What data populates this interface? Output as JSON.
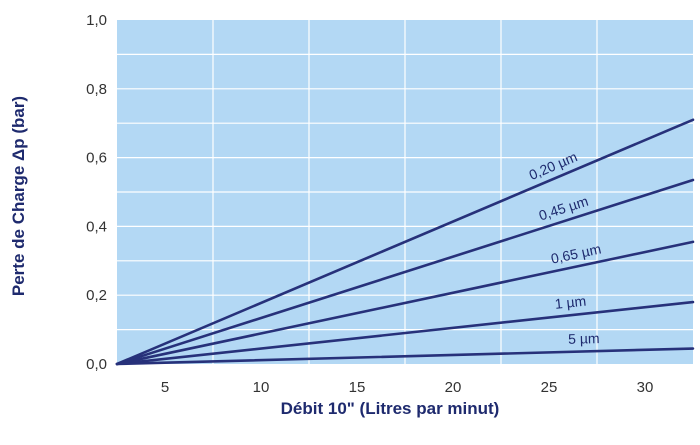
{
  "chart_data": {
    "type": "line",
    "xlabel": "Débit 10\" (Litres par minut)",
    "ylabel": "Perte de Charge Δp (bar)",
    "xlim": [
      2.5,
      32.5
    ],
    "ylim": [
      0,
      1.0
    ],
    "x_ticks": [
      "5",
      "10",
      "15",
      "20",
      "25",
      "30"
    ],
    "y_ticks": [
      "0,0",
      "0,2",
      "0,4",
      "0,6",
      "0,8",
      "1,0"
    ],
    "grid": true,
    "colors": {
      "plot_background": "#b3d8f4",
      "grid": "#ffffff",
      "line": "#27317a",
      "text": "#1e2a6e"
    },
    "series": [
      {
        "name": "0,20 µm",
        "x": [
          2.5,
          32.5
        ],
        "y": [
          0,
          0.71
        ]
      },
      {
        "name": "0,45 µm",
        "x": [
          2.5,
          32.5
        ],
        "y": [
          0,
          0.535
        ]
      },
      {
        "name": "0,65 µm",
        "x": [
          2.5,
          32.5
        ],
        "y": [
          0,
          0.355
        ]
      },
      {
        "name": "1 µm",
        "x": [
          2.5,
          32.5
        ],
        "y": [
          0,
          0.18
        ]
      },
      {
        "name": "5 µm",
        "x": [
          2.5,
          32.5
        ],
        "y": [
          0,
          0.045
        ]
      }
    ]
  }
}
